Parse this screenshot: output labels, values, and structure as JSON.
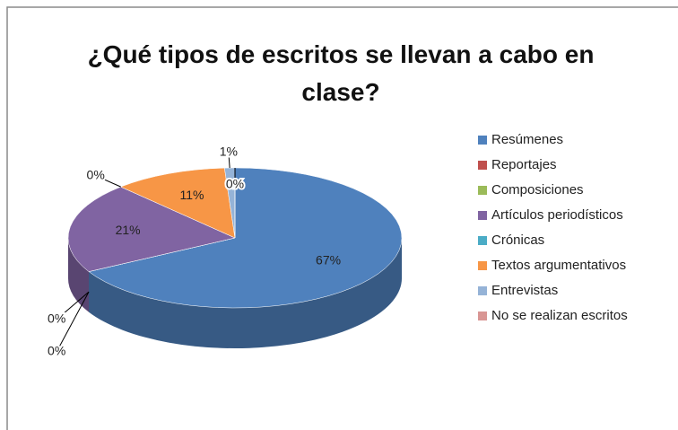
{
  "chart_data": {
    "type": "pie",
    "title": "¿Qué tipos de escritos se llevan a cabo en clase?",
    "categories": [
      "Resúmenes",
      "Reportajes",
      "Composiciones",
      "Artículos periodísticos",
      "Crónicas",
      "Textos argumentativos",
      "Entrevistas",
      "No se realizan escritos"
    ],
    "values": [
      67,
      0,
      0,
      21,
      0,
      11,
      1,
      0
    ],
    "value_labels": [
      "67%",
      "0%",
      "0%",
      "21%",
      "0%",
      "11%",
      "1%",
      "0%"
    ],
    "colors": [
      "#4f81bd",
      "#c0504d",
      "#9bbb59",
      "#8064a2",
      "#4bacc6",
      "#f79646",
      "#95b3d7",
      "#d99694"
    ],
    "legend": "right"
  }
}
